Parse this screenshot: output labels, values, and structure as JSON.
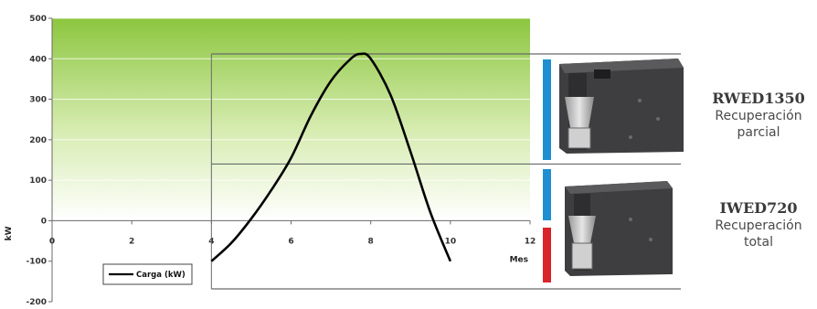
{
  "chart_data": {
    "type": "line",
    "x": [
      4,
      4.5,
      5,
      5.5,
      6,
      6.5,
      7,
      7.5,
      7.75,
      8,
      8.5,
      9,
      9.5,
      10
    ],
    "series": [
      {
        "name": "Carga (kW)",
        "values": [
          -100,
          -55,
          5,
          75,
          155,
          260,
          345,
          400,
          412,
          400,
          310,
          170,
          20,
          -100
        ]
      }
    ],
    "xlabel": "Mes",
    "ylabel": "kW",
    "xlim": [
      0,
      12
    ],
    "ylim": [
      -200,
      500
    ],
    "xticks": [
      "0",
      "2",
      "4",
      "6",
      "8",
      "10",
      "12"
    ],
    "yticks": [
      "500",
      "400",
      "300",
      "200",
      "100",
      "0",
      "-100",
      "-200"
    ],
    "legend": "bottom-left",
    "upper_band_kw": [
      140,
      412
    ],
    "colors": {
      "line": "#000000",
      "fill_top": "#8cc63f",
      "fill_bottom": "#ffffff",
      "bar_blue": "#1f8fd0",
      "bar_red": "#d9242a",
      "frame": "#6a6a6a"
    }
  },
  "legend": {
    "label": "Carga (kW)"
  },
  "products": [
    {
      "model": "RWED1350",
      "line1": "Recuperación",
      "line2": "parcial",
      "icon": "chiller-unit-icon"
    },
    {
      "model": "IWED720",
      "line1": "Recuperación",
      "line2": "total",
      "icon": "chiller-unit-icon"
    }
  ]
}
